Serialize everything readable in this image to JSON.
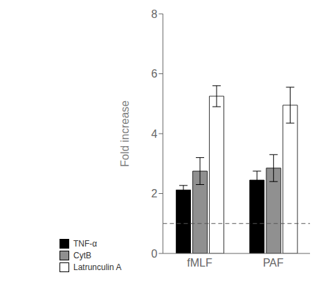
{
  "chart_data": {
    "type": "bar",
    "categories": [
      "fMLF",
      "PAF"
    ],
    "series": [
      {
        "name": "TNF-α",
        "color": "#000000",
        "values": [
          2.12,
          2.45
        ],
        "errors": [
          0.15,
          0.3
        ]
      },
      {
        "name": "CytB",
        "color": "#909090",
        "values": [
          2.75,
          2.85
        ],
        "errors": [
          0.45,
          0.45
        ]
      },
      {
        "name": "Latrunculin A",
        "color": "#ffffff",
        "values": [
          5.25,
          4.95
        ],
        "errors": [
          0.35,
          0.6
        ]
      }
    ],
    "ylabel": "Fold increase",
    "ylim": [
      0,
      8
    ],
    "yticks": [
      0,
      2,
      4,
      6,
      8
    ],
    "hline": 1.0,
    "grid": false,
    "legend": "bottom"
  }
}
